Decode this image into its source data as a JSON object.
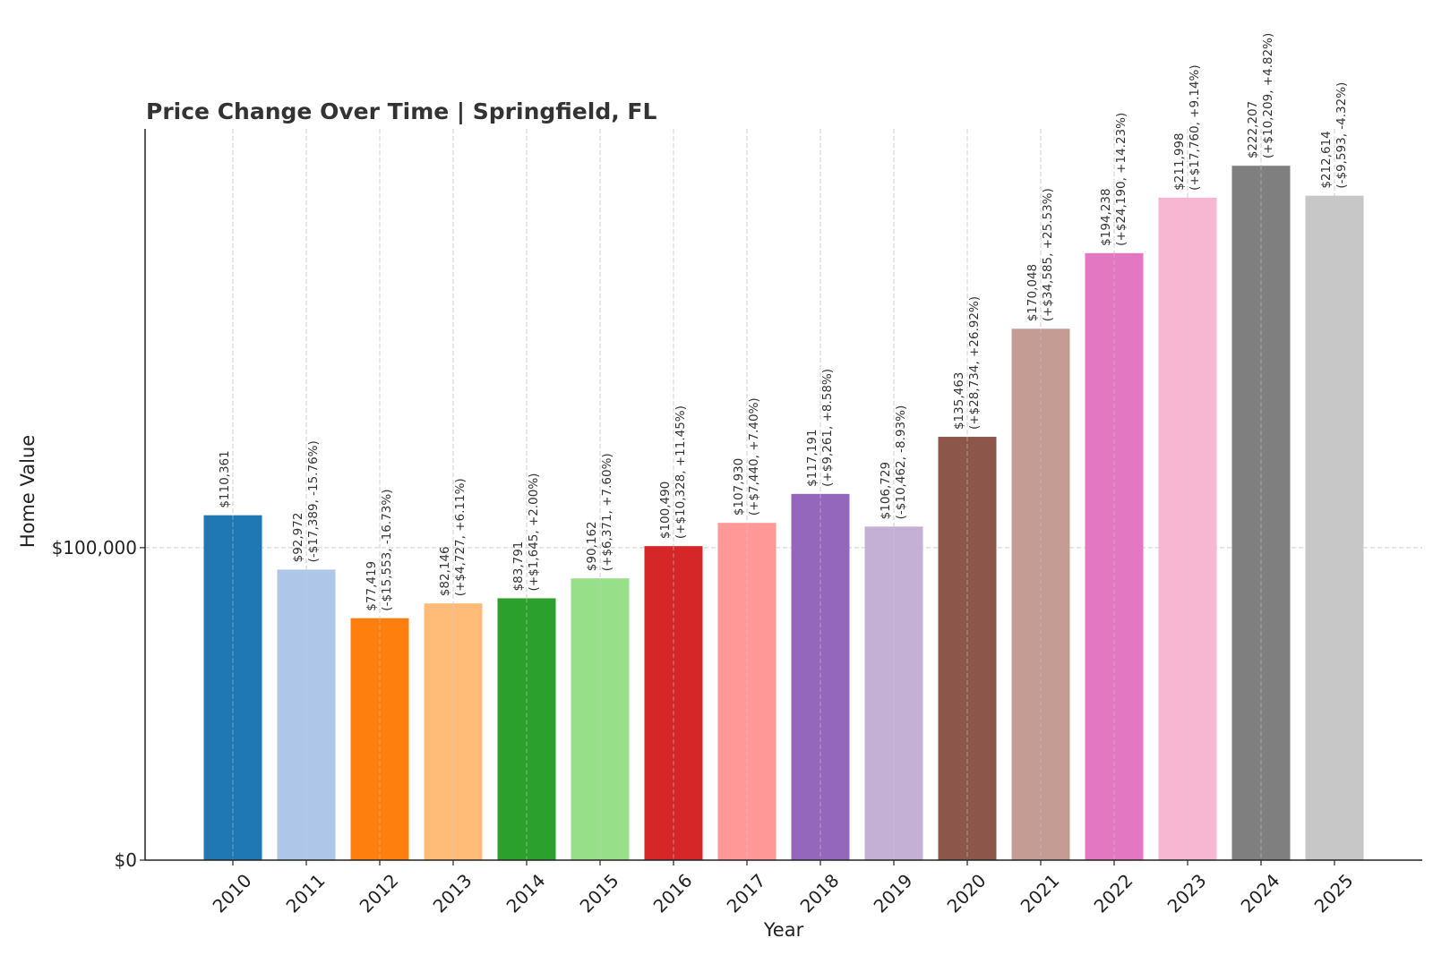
{
  "chart_data": {
    "type": "bar",
    "title": "Price Change Over Time | Springfield, FL",
    "xlabel": "Year",
    "ylabel": "Home Value",
    "ylim": [
      0,
      234000
    ],
    "yticks": [
      {
        "value": 0,
        "label": "$0"
      },
      {
        "value": 100000,
        "label": "$100,000"
      }
    ],
    "grid": true,
    "categories": [
      "2010",
      "2011",
      "2012",
      "2013",
      "2014",
      "2015",
      "2016",
      "2017",
      "2018",
      "2019",
      "2020",
      "2021",
      "2022",
      "2023",
      "2024",
      "2025"
    ],
    "values": [
      110361,
      92972,
      77419,
      82146,
      83791,
      90162,
      100490,
      107930,
      117191,
      106729,
      135463,
      170048,
      194238,
      211998,
      222207,
      212614
    ],
    "value_labels": [
      "$110,361",
      "$92,972",
      "$77,419",
      "$82,146",
      "$83,791",
      "$90,162",
      "$100,490",
      "$107,930",
      "$117,191",
      "$106,729",
      "$135,463",
      "$170,048",
      "$194,238",
      "$211,998",
      "$222,207",
      "$212,614"
    ],
    "change_labels": [
      "",
      "(-$17,389, -15.76%)",
      "(-$15,553, -16.73%)",
      "(+$4,727, +6.11%)",
      "(+$1,645, +2.00%)",
      "(+$6,371, +7.60%)",
      "(+$10,328, +11.45%)",
      "(+$7,440, +7.40%)",
      "(+$9,261, +8.58%)",
      "(-$10,462, -8.93%)",
      "(+$28,734, +26.92%)",
      "(+$34,585, +25.53%)",
      "(+$24,190, +14.23%)",
      "(+$17,760, +9.14%)",
      "(+$10,209, +4.82%)",
      "(-$9,593, -4.32%)"
    ],
    "colors": [
      "#1f77b4",
      "#aec7e8",
      "#ff7f0e",
      "#ffbb78",
      "#2ca02c",
      "#98df8a",
      "#d62728",
      "#ff9896",
      "#9467bd",
      "#c5b0d5",
      "#8c564b",
      "#c49c94",
      "#e377c2",
      "#f7b6d2",
      "#7f7f7f",
      "#c7c7c7"
    ]
  }
}
